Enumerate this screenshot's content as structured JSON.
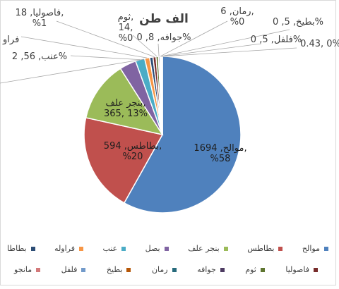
{
  "chart_data": {
    "type": "pie",
    "title": "الف طن",
    "slices": [
      {
        "name": "موالح",
        "value": 1694,
        "percent": "%58",
        "color": "#4f81bd"
      },
      {
        "name": "بطاطس",
        "value": 594,
        "percent": "%20",
        "color": "#c0504d"
      },
      {
        "name": "بنجر علف",
        "value": 365,
        "percent": "%13",
        "color": "#9bbb59"
      },
      {
        "name": "بصل",
        "value": 100,
        "percent": "",
        "color": "#8064a2"
      },
      {
        "name": "عنب",
        "value": 56,
        "percent": "%2",
        "color": "#4bacc6"
      },
      {
        "name": "فراوله",
        "value": 30,
        "percent": "",
        "color": "#f79646"
      },
      {
        "name": "بطاطا",
        "value": 20,
        "percent": "",
        "color": "#2c4d75"
      },
      {
        "name": "فاصوليا",
        "value": 18,
        "percent": "%1",
        "color": "#772c2a"
      },
      {
        "name": "ثوم",
        "value": 14,
        "percent": "%0",
        "color": "#5f7530"
      },
      {
        "name": "جوافه",
        "value": 8,
        "percent": "%0",
        "color": "#4d3b62"
      },
      {
        "name": "رمان",
        "value": 6,
        "percent": "%0",
        "color": "#276a7c"
      },
      {
        "name": "بطيخ",
        "value": 5,
        "percent": "%0",
        "color": "#b65708"
      },
      {
        "name": "فلفل",
        "value": 5,
        "percent": "%0",
        "color": "#729aca"
      },
      {
        "name": "مانجو",
        "value": 0.43,
        "percent": "%0",
        "color": "#d3797a"
      }
    ]
  },
  "pie_labels": {
    "mawaleh": [
      "موالح, 1694,",
      "%58"
    ],
    "batates": [
      "بطاطس, 594,",
      "%20"
    ],
    "bangar": [
      "بنجر علف,",
      "365, 13%"
    ],
    "enab": [
      "عنب, 56, 2%"
    ],
    "fasolia": [
      "فاصوليا, 18,",
      "%1"
    ],
    "thoum": [
      "ثوم,",
      "14,",
      "%0"
    ],
    "gawafa": [
      "جوافه, 8, 0%"
    ],
    "roman": [
      "رمان, 6,",
      "%0"
    ],
    "batikh": [
      "بطيخ, 5, 0%"
    ],
    "felfel": [
      "فلفل, 5, 0%"
    ],
    "mango": [
      "0.43, 0%"
    ],
    "farawla_partial": "فراو"
  },
  "legend": {
    "row1": [
      "موالح",
      "بطاطس",
      "بنجر علف",
      "بصل",
      "عنب",
      "فراوله",
      "بطاطا"
    ],
    "row2": [
      "فاصوليا",
      "ثوم",
      "جوافه",
      "رمان",
      "بطيخ",
      "فلفل",
      "مانجو"
    ]
  }
}
